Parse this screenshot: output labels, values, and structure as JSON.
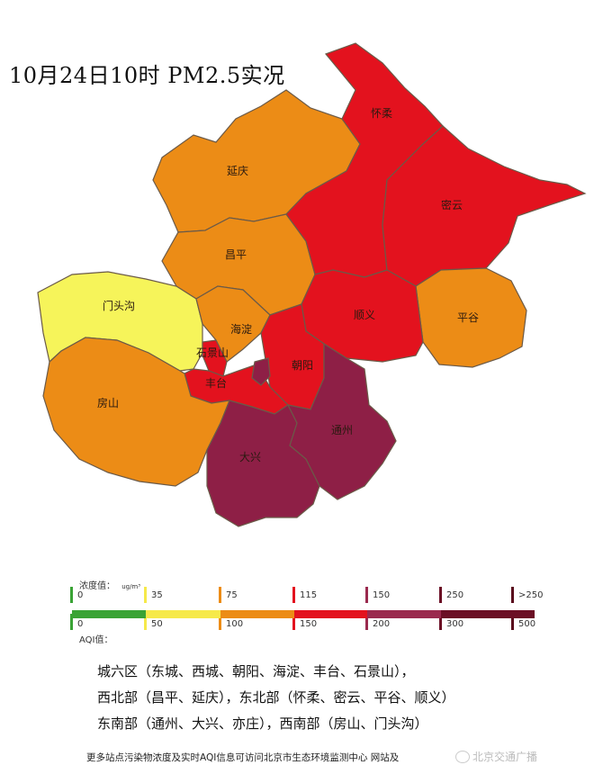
{
  "title": "10月24日10时 PM2.5实况",
  "colors": {
    "orange": "#EC8C16",
    "red": "#E3121E",
    "yellow": "#F6F45A",
    "dark_red": "#8E1F46",
    "border": "#6b5a48"
  },
  "districts": [
    {
      "name": "怀柔",
      "level": "red"
    },
    {
      "name": "密云",
      "level": "red"
    },
    {
      "name": "延庆",
      "level": "orange"
    },
    {
      "name": "昌平",
      "level": "orange"
    },
    {
      "name": "平谷",
      "level": "orange"
    },
    {
      "name": "顺义",
      "level": "red"
    },
    {
      "name": "门头沟",
      "level": "yellow"
    },
    {
      "name": "海淀",
      "level": "orange"
    },
    {
      "name": "石景山",
      "level": "red"
    },
    {
      "name": "朝阳",
      "level": "red"
    },
    {
      "name": "丰台",
      "level": "red"
    },
    {
      "name": "房山",
      "level": "orange"
    },
    {
      "name": "大兴",
      "level": "dark_red"
    },
    {
      "name": "通州",
      "level": "dark_red"
    }
  ],
  "legend": {
    "conc_label": "浓度值：",
    "conc_unit": "ug/m³",
    "aqi_label": "AQI值：",
    "conc_ticks": [
      "0",
      "35",
      "75",
      "115",
      "150",
      "250",
      ">250"
    ],
    "aqi_ticks": [
      "0",
      "50",
      "100",
      "150",
      "200",
      "300",
      "500"
    ],
    "tick_colors": [
      "#3AA335",
      "#F6E94A",
      "#EC8C16",
      "#E3121E",
      "#9A2A4E",
      "#6B0F25",
      "#5a0a1c"
    ]
  },
  "description": [
    "城六区（东城、西城、朝阳、海淀、丰台、石景山），",
    "西北部（昌平、延庆），东北部（怀柔、密云、平谷、顺义）",
    "东南部（通州、大兴、亦庄），西南部（房山、门头沟）"
  ],
  "footer": "更多站点污染物浓度及实时AQI信息可访问北京市生态环境监测中心 网站及",
  "watermark": "北京交通广播"
}
